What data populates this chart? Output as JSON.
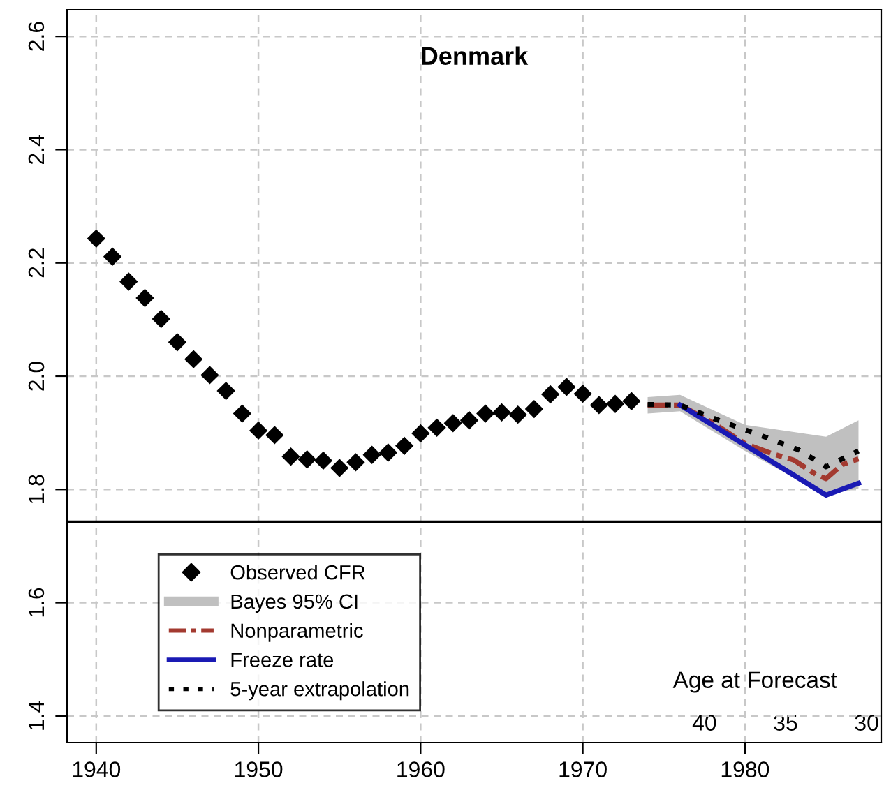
{
  "chart_data": {
    "type": "line",
    "title": "Denmark",
    "x": [
      1940,
      1941,
      1942,
      1943,
      1944,
      1945,
      1946,
      1947,
      1948,
      1949,
      1950,
      1951,
      1952,
      1953,
      1954,
      1955,
      1956,
      1957,
      1958,
      1959,
      1960,
      1961,
      1962,
      1963,
      1964,
      1965,
      1966,
      1967,
      1968,
      1969,
      1970,
      1971,
      1972,
      1973
    ],
    "series": [
      {
        "name": "Observed CFR",
        "type": "scatter",
        "color": "#000000",
        "marker": "diamond",
        "values": [
          2.243,
          2.211,
          2.167,
          2.138,
          2.101,
          2.06,
          2.03,
          2.002,
          1.974,
          1.934,
          1.904,
          1.896,
          1.858,
          1.853,
          1.851,
          1.838,
          1.848,
          1.861,
          1.865,
          1.877,
          1.899,
          1.909,
          1.917,
          1.922,
          1.934,
          1.936,
          1.932,
          1.942,
          1.968,
          1.981,
          1.969,
          1.949,
          1.951,
          1.956
        ]
      },
      {
        "name": "Bayes 95% CI",
        "type": "area",
        "color": "#c0c0c0",
        "x": [
          1974,
          1976,
          1980,
          1985,
          1987
        ],
        "values": [
          null,
          null,
          null,
          null,
          null
        ],
        "lower": [
          1.934,
          1.938,
          1.868,
          1.79,
          1.802
        ],
        "upper": [
          1.963,
          1.967,
          1.914,
          1.893,
          1.922
        ]
      },
      {
        "name": "Nonparametric",
        "color": "#a33a30",
        "line_style": "dashed",
        "x": [
          1974,
          1976,
          1978,
          1980,
          1981.7,
          1983,
          1984.4,
          1985,
          1986,
          1987
        ],
        "values": [
          1.949,
          1.949,
          1.918,
          1.881,
          1.863,
          1.852,
          1.826,
          1.819,
          1.844,
          1.854
        ]
      },
      {
        "name": "Freeze rate",
        "color": "#1a1ab4",
        "line_style": "solid",
        "x": [
          1976,
          1985,
          1987
        ],
        "values": [
          1.949,
          1.79,
          1.811
        ]
      },
      {
        "name": "5-year extrapolation",
        "color": "#000000",
        "line_style": "dotted",
        "x": [
          1974,
          1976,
          1978.4,
          1981.2,
          1983.3,
          1985,
          1987
        ],
        "values": [
          1.95,
          1.949,
          1.922,
          1.893,
          1.87,
          1.84,
          1.868
        ]
      }
    ],
    "xlim": [
      1938.2,
      1988.4
    ],
    "xticks": [
      1940,
      1950,
      1960,
      1970,
      1980
    ],
    "ylim": [
      1.353,
      2.647
    ],
    "yticks": [
      1.4,
      1.6,
      1.8,
      {
        "value": 2,
        "label": "2.0"
      },
      2.2,
      2.4,
      2.6
    ],
    "x2label": "Age at Forecast",
    "x2lim": [
      79.3,
      29.1
    ],
    "x2ticks": [
      40,
      35,
      30
    ],
    "ref_lines": [
      {
        "axis": "y",
        "value": 1.743,
        "label": null,
        "color": "#000000"
      }
    ],
    "grid": true,
    "legend": "bottom left"
  }
}
